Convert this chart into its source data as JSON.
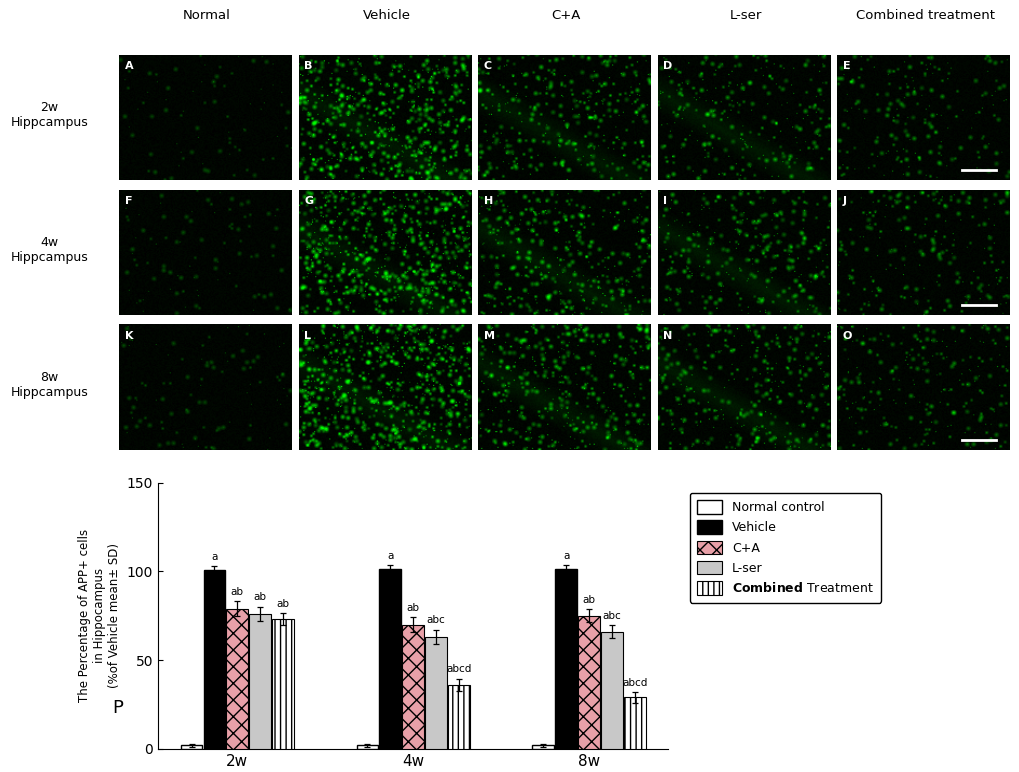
{
  "time_points": [
    "2w",
    "4w",
    "8w"
  ],
  "groups": [
    "Normal control",
    "Vehicle",
    "C+A",
    "L-ser",
    "Combined Treatment"
  ],
  "values": [
    [
      2.0,
      101.0,
      79.0,
      76.0,
      73.0
    ],
    [
      2.0,
      101.5,
      70.0,
      63.0,
      36.0
    ],
    [
      2.0,
      101.5,
      75.0,
      66.0,
      29.0
    ]
  ],
  "errors": [
    [
      0.8,
      1.8,
      4.0,
      4.0,
      3.5
    ],
    [
      0.8,
      1.8,
      4.0,
      4.0,
      3.5
    ],
    [
      0.8,
      1.8,
      3.5,
      3.5,
      3.0
    ]
  ],
  "significance_labels": [
    [
      "",
      "a",
      "ab",
      "ab",
      "ab"
    ],
    [
      "",
      "a",
      "ab",
      "abc",
      "abcd"
    ],
    [
      "",
      "a",
      "ab",
      "abc",
      "abcd"
    ]
  ],
  "ylabel": "The Percentage of APP+ cells\nin Hippocampus\n(%of Vehicle mean± SD)",
  "ylim": [
    0,
    150
  ],
  "yticks": [
    0,
    50,
    100,
    150
  ],
  "panel_label": "P",
  "figure_width": 10.2,
  "figure_height": 7.72,
  "col_headers": [
    "Normal",
    "Vehicle",
    "C+A",
    "L-ser",
    "Combined treatment"
  ],
  "row_labels": [
    "2w\nHippcampus",
    "4w\nHippcampus",
    "8w\nHippcampus"
  ],
  "letters": [
    [
      "A",
      "B",
      "C",
      "D",
      "E"
    ],
    [
      "F",
      "G",
      "H",
      "I",
      "J"
    ],
    [
      "K",
      "L",
      "M",
      "N",
      "O"
    ]
  ],
  "bar_width": 0.13,
  "legend_labels": [
    "Normal control",
    "Vehicle",
    "C+A",
    "L-ser",
    "Combined Treatment"
  ]
}
